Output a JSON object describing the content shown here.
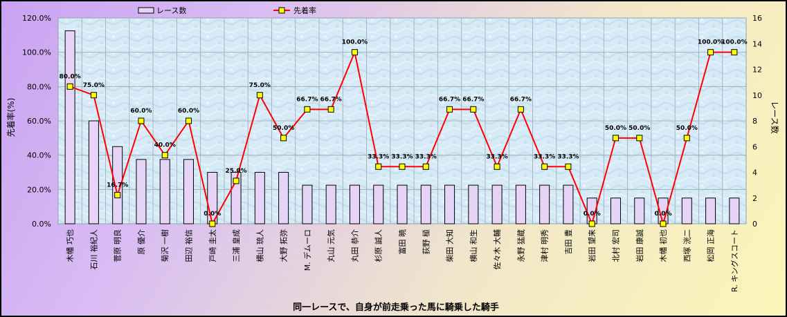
{
  "chart_data": {
    "type": "bar+line",
    "xlabel": "同一レースで、自身が前走乗った馬に騎乗した騎手",
    "ylabel_left": "先着率(%)",
    "ylabel_right": "レース数",
    "ylim_left": [
      0,
      120
    ],
    "ylim_right": [
      0,
      16
    ],
    "yticks_left": [
      "0.0%",
      "20.0%",
      "40.0%",
      "60.0%",
      "80.0%",
      "100.0%",
      "120.0%"
    ],
    "yticks_right": [
      "0",
      "2",
      "4",
      "6",
      "8",
      "10",
      "12",
      "14",
      "16"
    ],
    "grid": true,
    "legend_position": "top",
    "categories": [
      "木幡 巧也",
      "石川 裕紀人",
      "菅原 明良",
      "原 優介",
      "菊沢 一樹",
      "田辺 裕信",
      "戸崎 圭太",
      "三浦 皇成",
      "横山 琉人",
      "大野 拓弥",
      "M. デムーロ",
      "丸山 元気",
      "丸田 恭介",
      "杉原 誠人",
      "富田 暁",
      "荻野 極",
      "柴田 大知",
      "横山 和生",
      "佐々木 大輔",
      "永野 猛蔵",
      "津村 明秀",
      "吉田 豊",
      "岩田 望来",
      "北村 宏司",
      "岩田 康誠",
      "木幡 初也",
      "西塚 洸二",
      "松岡 正海",
      "R. キングスコート"
    ],
    "series": [
      {
        "name": "レース数",
        "type": "bar",
        "axis": "right",
        "color": "#e6d4f7",
        "values": [
          15,
          8,
          6,
          5,
          5,
          5,
          4,
          4,
          4,
          4,
          3,
          3,
          3,
          3,
          3,
          3,
          3,
          3,
          3,
          3,
          3,
          3,
          2,
          2,
          2,
          2,
          2,
          2,
          2
        ]
      },
      {
        "name": "先着率",
        "type": "line",
        "axis": "left",
        "color": "#ff0000",
        "marker_color": "#ffff00",
        "values": [
          80.0,
          75.0,
          16.7,
          60.0,
          40.0,
          60.0,
          0.0,
          25.0,
          75.0,
          50.0,
          66.7,
          66.7,
          100.0,
          33.3,
          33.3,
          33.3,
          66.7,
          66.7,
          33.3,
          66.7,
          33.3,
          33.3,
          0.0,
          50.0,
          50.0,
          0.0,
          50.0,
          100.0,
          100.0
        ],
        "labels": [
          "80.0%",
          "75.0%",
          "16.7%",
          "60.0%",
          "40.0%",
          "60.0%",
          "0.0%",
          "25.0%",
          "75.0%",
          "50.0%",
          "66.7%",
          "66.7%",
          "100.0%",
          "33.3%",
          "33.3%",
          "33.3%",
          "66.7%",
          "66.7%",
          "33.3%",
          "66.7%",
          "33.3%",
          "33.3%",
          "0.0%",
          "50.0%",
          "50.0%",
          "0.0%",
          "50.0%",
          "100.0%",
          "100.0%"
        ]
      }
    ]
  }
}
